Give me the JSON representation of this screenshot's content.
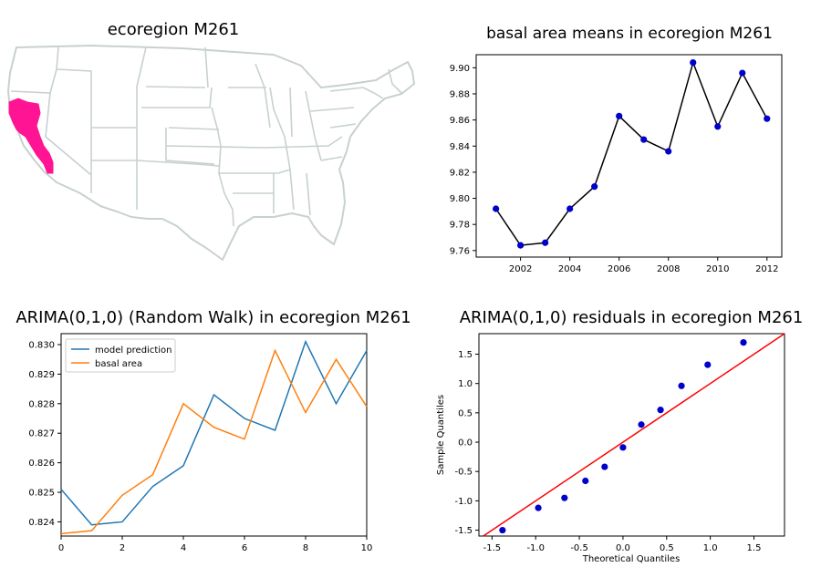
{
  "chart_data": [
    {
      "type": "map",
      "title": "ecoregion M261",
      "highlight_color": "#ff1493",
      "region_fill": "#ffffff",
      "border_color": "#c8d0d0"
    },
    {
      "type": "line",
      "title": "basal area means in ecoregion M261",
      "x": [
        2001,
        2002,
        2003,
        2004,
        2005,
        2006,
        2007,
        2008,
        2009,
        2010,
        2011,
        2012
      ],
      "series": [
        {
          "values": [
            9.792,
            9.764,
            9.766,
            9.792,
            9.809,
            9.863,
            9.845,
            9.836,
            9.904,
            9.855,
            9.896,
            9.861
          ],
          "line_color": "#000000",
          "marker_color": "#0000cc"
        }
      ],
      "xlim": [
        2000.2,
        2012.6
      ],
      "ylim": [
        9.755,
        9.91
      ],
      "xticks": [
        2002,
        2004,
        2006,
        2008,
        2010,
        2012
      ],
      "yticks": [
        9.76,
        9.78,
        9.8,
        9.82,
        9.84,
        9.86,
        9.88,
        9.9
      ],
      "ytick_labels": [
        "9.76",
        "9.78",
        "9.80",
        "9.82",
        "9.84",
        "9.86",
        "9.88",
        "9.90"
      ],
      "grid": false
    },
    {
      "type": "line",
      "title": "ARIMA(0,1,0) (Random Walk) in ecoregion M261",
      "x": [
        0,
        1,
        2,
        3,
        4,
        5,
        6,
        7,
        8,
        9,
        10
      ],
      "series": [
        {
          "name": "model prediction",
          "color": "#1f77b4",
          "values": [
            0.8251,
            0.8239,
            0.824,
            0.8252,
            0.8259,
            0.8283,
            0.8275,
            0.8271,
            0.8301,
            0.828,
            0.8298
          ]
        },
        {
          "name": "basal area",
          "color": "#ff7f0e",
          "values": [
            0.8236,
            0.8237,
            0.8249,
            0.8256,
            0.828,
            0.8272,
            0.8268,
            0.8298,
            0.8277,
            0.8295,
            0.8279
          ]
        }
      ],
      "xlim": [
        0,
        10
      ],
      "ylim": [
        0.82352,
        0.83037
      ],
      "xticks": [
        0,
        2,
        4,
        6,
        8,
        10
      ],
      "yticks": [
        0.824,
        0.825,
        0.826,
        0.827,
        0.828,
        0.829,
        0.83
      ],
      "ytick_labels": [
        "0.824",
        "0.825",
        "0.826",
        "0.827",
        "0.828",
        "0.829",
        "0.830"
      ],
      "legend": "top-left",
      "grid": false
    },
    {
      "type": "scatter",
      "title": "ARIMA(0,1,0) residuals in ecoregion M261",
      "xlabel": "Theoretical Quantiles",
      "ylabel": "Sample Quantiles",
      "points": [
        [
          -1.38,
          -1.5
        ],
        [
          -0.97,
          -1.12
        ],
        [
          -0.67,
          -0.95
        ],
        [
          -0.43,
          -0.66
        ],
        [
          -0.21,
          -0.42
        ],
        [
          0.0,
          -0.09
        ],
        [
          0.21,
          0.3
        ],
        [
          0.43,
          0.55
        ],
        [
          0.67,
          0.96
        ],
        [
          0.97,
          1.32
        ],
        [
          1.38,
          1.7
        ]
      ],
      "marker_color": "#0000cc",
      "reference_line": {
        "slope": 1,
        "intercept": 0,
        "color": "#ff0000"
      },
      "xlim": [
        -1.65,
        1.85
      ],
      "ylim": [
        -1.6,
        1.85
      ],
      "xticks": [
        -1.5,
        -1.0,
        -0.5,
        0.0,
        0.5,
        1.0,
        1.5
      ],
      "xtick_labels": [
        "-1.5",
        "-1.0",
        "-0.5",
        "0.0",
        "0.5",
        "1.0",
        "1.5"
      ],
      "yticks": [
        -1.5,
        -1.0,
        -0.5,
        0.0,
        0.5,
        1.0,
        1.5
      ],
      "ytick_labels": [
        "-1.5",
        "-1.0",
        "-0.5",
        "0.0",
        "0.5",
        "1.0",
        "1.5"
      ],
      "grid": false
    }
  ]
}
